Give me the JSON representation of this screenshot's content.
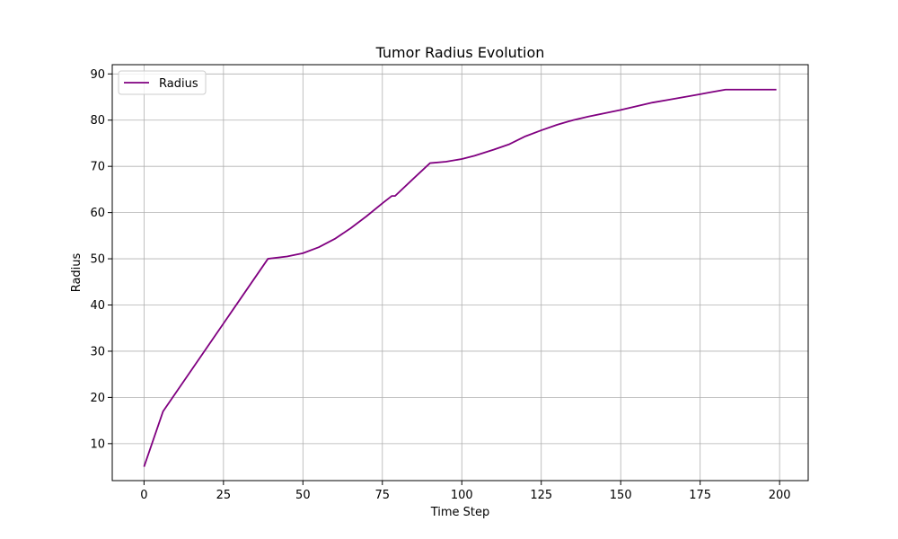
{
  "chart_data": {
    "type": "line",
    "title": "Tumor Radius Evolution",
    "xlabel": "Time Step",
    "ylabel": "Radius",
    "xlim": [
      -10,
      209
    ],
    "ylim": [
      2,
      92
    ],
    "xticks": [
      0,
      25,
      50,
      75,
      100,
      125,
      150,
      175,
      200
    ],
    "yticks": [
      10,
      20,
      30,
      40,
      50,
      60,
      70,
      80,
      90
    ],
    "grid": true,
    "legend": "upper-left",
    "series": [
      {
        "name": "Radius",
        "color": "#800080",
        "points": [
          [
            0,
            5.0
          ],
          [
            6,
            17.0
          ],
          [
            39,
            50.0
          ],
          [
            45,
            50.5
          ],
          [
            50,
            51.2
          ],
          [
            55,
            52.5
          ],
          [
            60,
            54.3
          ],
          [
            65,
            56.6
          ],
          [
            70,
            59.2
          ],
          [
            75,
            62.0
          ],
          [
            78,
            63.6
          ],
          [
            79,
            63.6
          ],
          [
            85,
            67.5
          ],
          [
            90,
            70.7
          ],
          [
            95,
            71.0
          ],
          [
            100,
            71.6
          ],
          [
            104,
            72.3
          ],
          [
            110,
            73.6
          ],
          [
            115,
            74.8
          ],
          [
            120,
            76.5
          ],
          [
            125,
            77.8
          ],
          [
            130,
            79.0
          ],
          [
            135,
            80.0
          ],
          [
            140,
            80.8
          ],
          [
            145,
            81.5
          ],
          [
            150,
            82.2
          ],
          [
            155,
            83.0
          ],
          [
            160,
            83.8
          ],
          [
            165,
            84.4
          ],
          [
            170,
            85.0
          ],
          [
            175,
            85.6
          ],
          [
            178,
            86.0
          ],
          [
            183,
            86.6
          ],
          [
            190,
            86.6
          ],
          [
            199,
            86.6
          ]
        ]
      }
    ]
  }
}
